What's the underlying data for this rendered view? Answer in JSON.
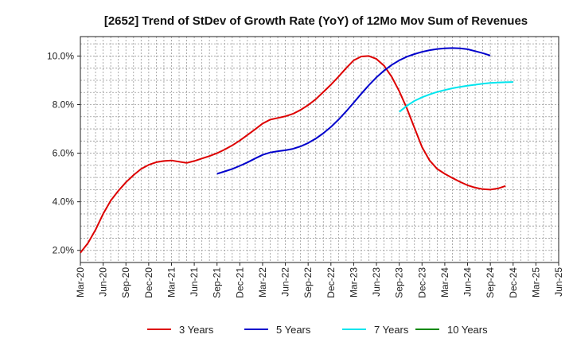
{
  "chart_data": {
    "type": "line",
    "title": "[2652]  Trend of StDev of Growth Rate (YoY) of 12Mo Mov Sum of Revenues",
    "xlabel": "",
    "ylabel": "",
    "x_tick_labels": [
      "Mar-20",
      "Jun-20",
      "Sep-20",
      "Dec-20",
      "Mar-21",
      "Jun-21",
      "Sep-21",
      "Dec-21",
      "Mar-22",
      "Jun-22",
      "Sep-22",
      "Dec-22",
      "Mar-23",
      "Jun-23",
      "Sep-23",
      "Dec-23",
      "Mar-24",
      "Jun-24",
      "Sep-24",
      "Dec-24",
      "Mar-25",
      "Jun-25"
    ],
    "y_ticks": [
      2.0,
      4.0,
      6.0,
      8.0,
      10.0
    ],
    "y_tick_labels": [
      "2.0%",
      "4.0%",
      "6.0%",
      "8.0%",
      "10.0%"
    ],
    "ylim": [
      1.5,
      10.8
    ],
    "grid": true,
    "legend_position": "bottom",
    "series": [
      {
        "name": "3 Years",
        "color": "#dd0000",
        "start_index": 0,
        "values": [
          1.9,
          2.3,
          2.85,
          3.5,
          4.05,
          4.45,
          4.8,
          5.1,
          5.35,
          5.52,
          5.63,
          5.68,
          5.7,
          5.65,
          5.6,
          5.68,
          5.78,
          5.88,
          6.0,
          6.15,
          6.32,
          6.52,
          6.75,
          6.98,
          7.22,
          7.38,
          7.45,
          7.52,
          7.62,
          7.78,
          7.98,
          8.22,
          8.52,
          8.82,
          9.15,
          9.5,
          9.82,
          9.98,
          10.0,
          9.88,
          9.6,
          9.15,
          8.55,
          7.85,
          7.05,
          6.25,
          5.7,
          5.35,
          5.15,
          4.98,
          4.82,
          4.68,
          4.58,
          4.52,
          4.5,
          4.55,
          4.65
        ]
      },
      {
        "name": "5 Years",
        "color": "#0000cc",
        "start_index": 18,
        "values": [
          5.15,
          5.25,
          5.35,
          5.48,
          5.62,
          5.78,
          5.93,
          6.03,
          6.08,
          6.12,
          6.18,
          6.28,
          6.42,
          6.6,
          6.82,
          7.08,
          7.38,
          7.72,
          8.08,
          8.45,
          8.8,
          9.12,
          9.4,
          9.63,
          9.82,
          9.97,
          10.08,
          10.17,
          10.24,
          10.29,
          10.32,
          10.33,
          10.32,
          10.28,
          10.2,
          10.12,
          10.02
        ]
      },
      {
        "name": "7 Years",
        "color": "#00e5ee",
        "start_index": 42,
        "values": [
          7.7,
          7.95,
          8.15,
          8.3,
          8.42,
          8.52,
          8.6,
          8.67,
          8.73,
          8.78,
          8.82,
          8.86,
          8.89,
          8.91,
          8.92,
          8.93
        ]
      },
      {
        "name": "10 Years",
        "color": "#008800",
        "start_index": 0,
        "values": []
      }
    ]
  }
}
